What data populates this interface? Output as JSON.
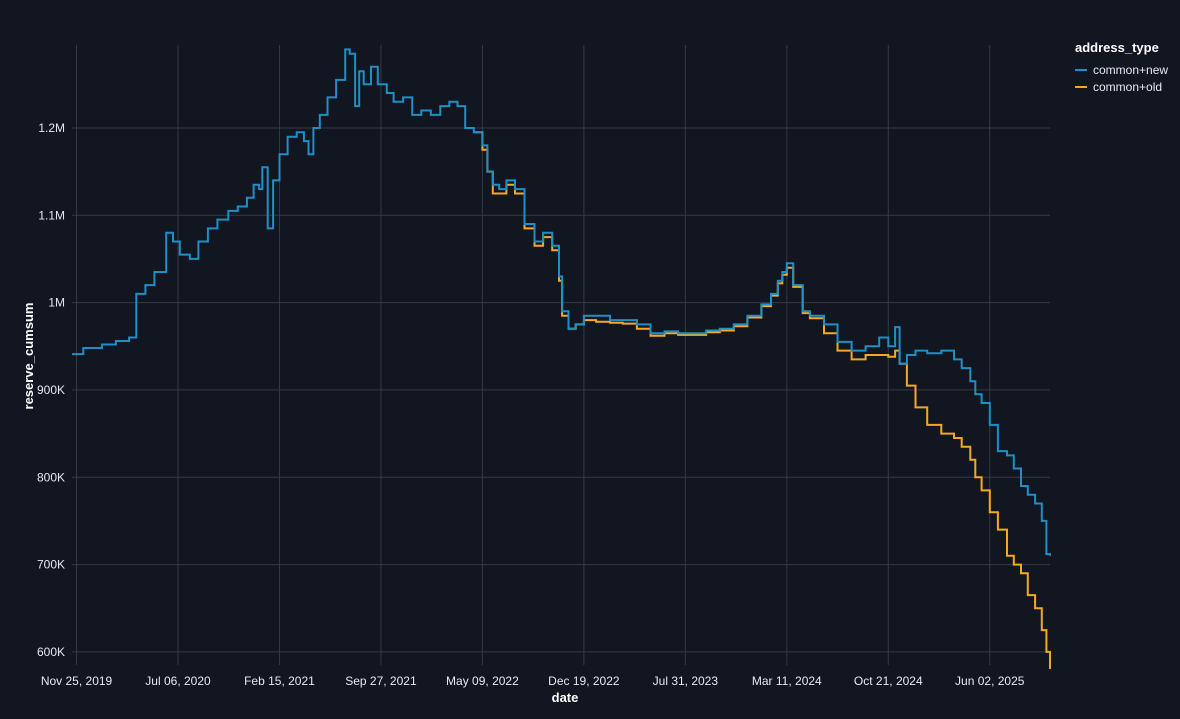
{
  "colors": {
    "background": "#121620",
    "grid": "#343a46",
    "axis_text": "#e6e9ef",
    "common_new": "#1f8fc6",
    "common_old": "#f7a823"
  },
  "chart_data": {
    "type": "line",
    "line_shape": "step",
    "xlabel": "date",
    "ylabel": "reserve_cumsum",
    "x_tick_labels": [
      "Nov 25, 2019",
      "Jul 06, 2020",
      "Feb 15, 2021",
      "Sep 27, 2021",
      "May 09, 2022",
      "Dec 19, 2022",
      "Jul 31, 2023",
      "Mar 11, 2024",
      "Oct 21, 2024",
      "Jun 02, 2025"
    ],
    "x_tick_values": [
      "2019-11-25",
      "2020-07-06",
      "2021-02-15",
      "2021-09-27",
      "2022-05-09",
      "2022-12-19",
      "2023-07-31",
      "2024-03-11",
      "2024-10-21",
      "2025-06-02"
    ],
    "y_tick_labels": [
      "600K",
      "700K",
      "800K",
      "900K",
      "1M",
      "1.1M",
      "1.2M"
    ],
    "y_tick_values": [
      600000,
      700000,
      800000,
      900000,
      1000000,
      1100000,
      1200000
    ],
    "xlim": [
      "2019-11-15",
      "2025-10-13"
    ],
    "ylim": [
      585000,
      1295000
    ],
    "grid": true,
    "legend": {
      "title": "address_type",
      "position": "right",
      "entries": [
        "common+new",
        "common+old"
      ]
    },
    "series": [
      {
        "name": "common+new",
        "x": [
          "2019-11-15",
          "2019-12-10",
          "2020-01-20",
          "2020-02-20",
          "2020-03-20",
          "2020-04-05",
          "2020-04-25",
          "2020-05-15",
          "2020-06-10",
          "2020-06-25",
          "2020-07-10",
          "2020-08-01",
          "2020-08-20",
          "2020-09-10",
          "2020-10-01",
          "2020-10-25",
          "2020-11-15",
          "2020-12-05",
          "2020-12-20",
          "2021-01-01",
          "2021-01-08",
          "2021-01-20",
          "2021-02-01",
          "2021-02-15",
          "2021-03-05",
          "2021-03-25",
          "2021-04-10",
          "2021-04-20",
          "2021-05-01",
          "2021-05-15",
          "2021-06-01",
          "2021-06-20",
          "2021-07-10",
          "2021-07-20",
          "2021-08-01",
          "2021-08-10",
          "2021-08-20",
          "2021-09-05",
          "2021-09-20",
          "2021-10-10",
          "2021-10-25",
          "2021-11-15",
          "2021-12-05",
          "2021-12-25",
          "2022-01-15",
          "2022-02-05",
          "2022-02-25",
          "2022-03-15",
          "2022-04-01",
          "2022-04-20",
          "2022-05-09",
          "2022-05-20",
          "2022-06-01",
          "2022-06-15",
          "2022-07-01",
          "2022-07-20",
          "2022-08-10",
          "2022-09-01",
          "2022-09-20",
          "2022-10-10",
          "2022-10-25",
          "2022-11-01",
          "2022-11-15",
          "2022-12-01",
          "2022-12-19",
          "2023-01-15",
          "2023-02-15",
          "2023-03-15",
          "2023-04-15",
          "2023-05-15",
          "2023-06-15",
          "2023-07-15",
          "2023-08-15",
          "2023-09-15",
          "2023-10-15",
          "2023-11-15",
          "2023-12-15",
          "2024-01-15",
          "2024-02-05",
          "2024-02-20",
          "2024-03-01",
          "2024-03-11",
          "2024-03-25",
          "2024-04-15",
          "2024-05-01",
          "2024-06-01",
          "2024-07-01",
          "2024-08-01",
          "2024-09-01",
          "2024-10-01",
          "2024-10-21",
          "2024-11-05",
          "2024-11-15",
          "2024-12-01",
          "2024-12-20",
          "2025-01-15",
          "2025-02-15",
          "2025-03-15",
          "2025-04-01",
          "2025-04-20",
          "2025-05-01",
          "2025-05-15",
          "2025-06-02",
          "2025-06-20",
          "2025-07-10",
          "2025-07-25",
          "2025-08-10",
          "2025-08-25",
          "2025-09-10",
          "2025-09-25",
          "2025-10-05",
          "2025-10-13"
        ],
        "values": [
          941000,
          948000,
          952000,
          956000,
          960000,
          1010000,
          1020000,
          1035000,
          1080000,
          1070000,
          1055000,
          1050000,
          1070000,
          1085000,
          1095000,
          1105000,
          1110000,
          1120000,
          1135000,
          1130000,
          1155000,
          1085000,
          1140000,
          1170000,
          1190000,
          1195000,
          1185000,
          1170000,
          1200000,
          1215000,
          1235000,
          1255000,
          1290000,
          1285000,
          1225000,
          1265000,
          1250000,
          1270000,
          1250000,
          1240000,
          1230000,
          1235000,
          1215000,
          1220000,
          1215000,
          1225000,
          1230000,
          1225000,
          1200000,
          1195000,
          1180000,
          1150000,
          1135000,
          1130000,
          1140000,
          1130000,
          1090000,
          1070000,
          1080000,
          1065000,
          1030000,
          990000,
          970000,
          975000,
          985000,
          985000,
          980000,
          980000,
          975000,
          965000,
          967000,
          965000,
          965000,
          968000,
          970000,
          975000,
          985000,
          998000,
          1010000,
          1025000,
          1035000,
          1045000,
          1020000,
          990000,
          985000,
          975000,
          955000,
          945000,
          950000,
          960000,
          950000,
          972000,
          930000,
          940000,
          945000,
          942000,
          945000,
          935000,
          925000,
          910000,
          895000,
          885000,
          860000,
          830000,
          825000,
          810000,
          790000,
          780000,
          770000,
          750000,
          712000,
          710000
        ]
      },
      {
        "name": "common+old",
        "x": [
          "2022-04-20",
          "2022-05-09",
          "2022-05-20",
          "2022-06-01",
          "2022-06-15",
          "2022-07-01",
          "2022-07-20",
          "2022-08-10",
          "2022-09-01",
          "2022-09-20",
          "2022-10-10",
          "2022-10-25",
          "2022-11-01",
          "2022-11-15",
          "2022-12-01",
          "2022-12-19",
          "2023-01-15",
          "2023-02-15",
          "2023-03-15",
          "2023-04-15",
          "2023-05-15",
          "2023-06-15",
          "2023-07-15",
          "2023-08-15",
          "2023-09-15",
          "2023-10-15",
          "2023-11-15",
          "2023-12-15",
          "2024-01-15",
          "2024-02-05",
          "2024-02-20",
          "2024-03-01",
          "2024-03-11",
          "2024-03-25",
          "2024-04-15",
          "2024-05-01",
          "2024-06-01",
          "2024-07-01",
          "2024-08-01",
          "2024-09-01",
          "2024-10-01",
          "2024-10-21",
          "2024-11-05",
          "2024-11-15",
          "2024-12-01",
          "2024-12-20",
          "2025-01-15",
          "2025-02-15",
          "2025-03-15",
          "2025-04-01",
          "2025-04-20",
          "2025-05-01",
          "2025-05-15",
          "2025-06-02",
          "2025-06-20",
          "2025-07-10",
          "2025-07-25",
          "2025-08-10",
          "2025-08-25",
          "2025-09-10",
          "2025-09-25",
          "2025-10-05",
          "2025-10-13"
        ],
        "values": [
          1195000,
          1175000,
          1150000,
          1125000,
          1125000,
          1135000,
          1125000,
          1085000,
          1065000,
          1075000,
          1060000,
          1025000,
          985000,
          970000,
          975000,
          980000,
          978000,
          977000,
          976000,
          970000,
          962000,
          965000,
          963000,
          963000,
          966000,
          968000,
          973000,
          983000,
          996000,
          1008000,
          1022000,
          1032000,
          1040000,
          1018000,
          988000,
          982000,
          965000,
          945000,
          935000,
          940000,
          940000,
          938000,
          945000,
          930000,
          905000,
          880000,
          860000,
          850000,
          845000,
          835000,
          820000,
          800000,
          785000,
          760000,
          740000,
          710000,
          700000,
          690000,
          665000,
          650000,
          625000,
          600000,
          580000
        ]
      }
    ]
  }
}
